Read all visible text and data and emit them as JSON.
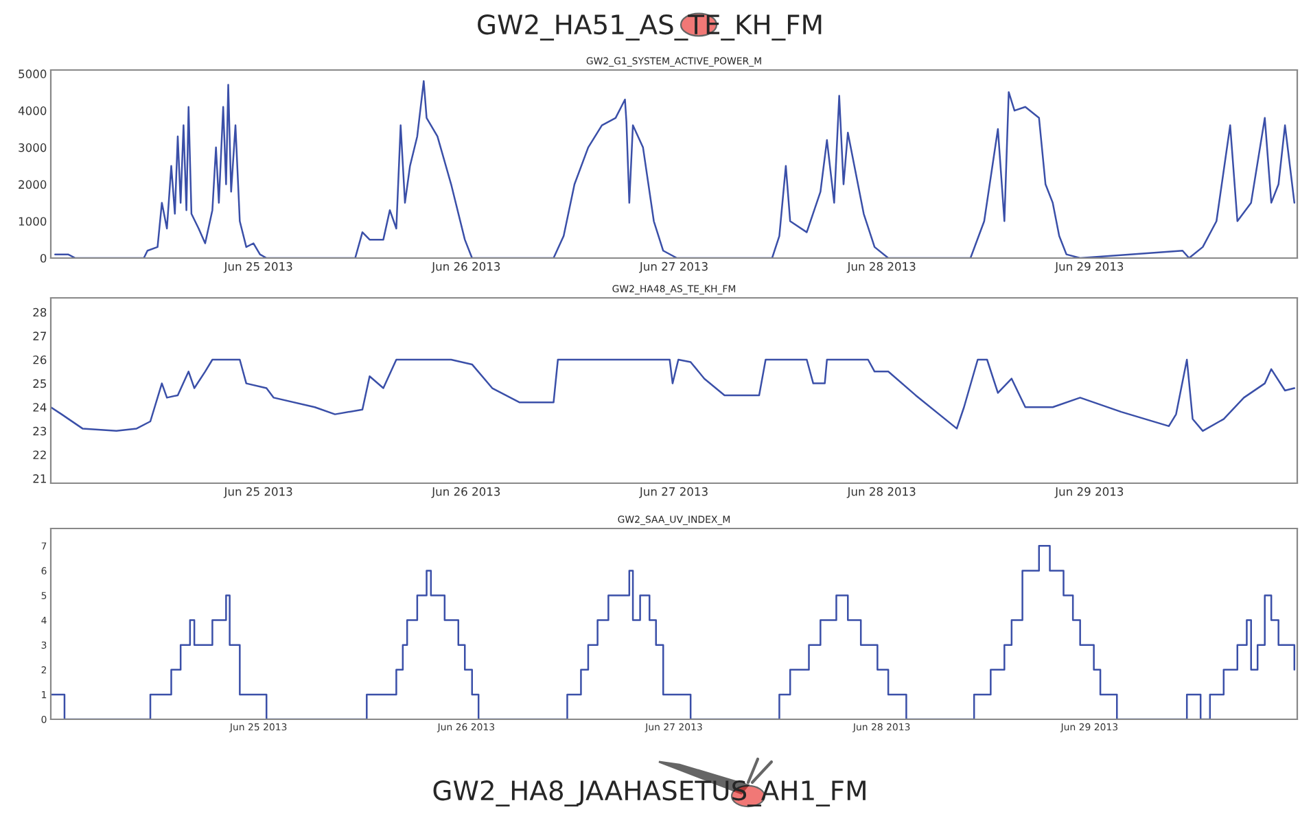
{
  "chart_data": [
    {
      "type": "line",
      "title": "GW2_G1_SYSTEM_ACTIVE_POWER_M",
      "annotations": [
        "GW2_HA51_AS_TE_KH_FM"
      ],
      "x": [
        "2013-06-24T00:30",
        "2013-06-24T02:00",
        "2013-06-24T02:50",
        "2013-06-24T10:45",
        "2013-06-24T11:10",
        "2013-06-24T12:20",
        "2013-06-24T12:50",
        "2013-06-24T13:25",
        "2013-06-24T13:55",
        "2013-06-24T14:20",
        "2013-06-24T14:40",
        "2013-06-24T15:00",
        "2013-06-24T15:20",
        "2013-06-24T15:40",
        "2013-06-24T15:55",
        "2013-06-24T16:15",
        "2013-06-24T17:05",
        "2013-06-24T17:50",
        "2013-06-24T18:40",
        "2013-06-24T19:05",
        "2013-06-24T19:25",
        "2013-06-24T19:55",
        "2013-06-24T20:15",
        "2013-06-24T20:30",
        "2013-06-24T20:50",
        "2013-06-24T21:20",
        "2013-06-24T21:50",
        "2013-06-24T22:35",
        "2013-06-24T23:25",
        "2013-06-25T00:10",
        "2013-06-25T00:55",
        "2013-06-25T11:10",
        "2013-06-25T12:00",
        "2013-06-25T12:50",
        "2013-06-25T14:25",
        "2013-06-25T15:10",
        "2013-06-25T15:55",
        "2013-06-25T16:25",
        "2013-06-25T16:55",
        "2013-06-25T17:30",
        "2013-06-25T18:20",
        "2013-06-25T19:05",
        "2013-06-25T19:25",
        "2013-06-25T20:40",
        "2013-06-25T22:15",
        "2013-06-25T23:50",
        "2013-06-26T00:40",
        "2013-06-26T10:05",
        "2013-06-26T11:15",
        "2013-06-26T12:30",
        "2013-06-26T14:05",
        "2013-06-26T15:40",
        "2013-06-26T17:15",
        "2013-06-26T18:20",
        "2013-06-26T18:30",
        "2013-06-26T18:50",
        "2013-06-26T19:15",
        "2013-06-26T20:25",
        "2013-06-26T21:40",
        "2013-06-26T22:45",
        "2013-06-27T00:20",
        "2013-06-27T11:20",
        "2013-06-27T12:10",
        "2013-06-27T12:55",
        "2013-06-27T13:25",
        "2013-06-27T15:20",
        "2013-06-27T16:55",
        "2013-06-27T17:40",
        "2013-06-27T18:30",
        "2013-06-27T19:05",
        "2013-06-27T19:35",
        "2013-06-27T20:05",
        "2013-06-27T20:50",
        "2013-06-27T21:55",
        "2013-06-27T23:10",
        "2013-06-28T00:45",
        "2013-06-28T10:15",
        "2013-06-28T11:50",
        "2013-06-28T13:25",
        "2013-06-28T14:10",
        "2013-06-28T14:40",
        "2013-06-28T15:20",
        "2013-06-28T16:35",
        "2013-06-28T18:10",
        "2013-06-28T18:55",
        "2013-06-28T19:45",
        "2013-06-28T20:30",
        "2013-06-28T21:20",
        "2013-06-28T22:55",
        "2013-06-29T10:45",
        "2013-06-29T11:30",
        "2013-06-29T13:05",
        "2013-06-29T14:40",
        "2013-06-29T16:15",
        "2013-06-29T17:05",
        "2013-06-29T18:40",
        "2013-06-29T20:15",
        "2013-06-29T21:00",
        "2013-06-29T21:50",
        "2013-06-29T22:35",
        "2013-06-29T23:40"
      ],
      "series": [
        {
          "color": "#3a4fa8",
          "values": [
            100,
            100,
            0,
            0,
            200,
            300,
            1500,
            800,
            2500,
            1200,
            3300,
            1500,
            3600,
            1300,
            4100,
            1200,
            800,
            400,
            1300,
            3000,
            1500,
            4100,
            2000,
            4700,
            1800,
            3600,
            1000,
            300,
            400,
            100,
            0,
            0,
            700,
            500,
            500,
            1300,
            800,
            3600,
            1500,
            2500,
            3300,
            4800,
            3800,
            3300,
            2000,
            500,
            0,
            0,
            600,
            2000,
            3000,
            3600,
            3800,
            4300,
            3700,
            1500,
            3600,
            3000,
            1000,
            200,
            0,
            0,
            600,
            2500,
            1000,
            700,
            1800,
            3200,
            1500,
            4400,
            2000,
            3400,
            2500,
            1200,
            300,
            0,
            0,
            1000,
            3500,
            1000,
            4500,
            4000,
            4100,
            3800,
            2000,
            1500,
            600,
            100,
            0,
            200,
            0,
            300,
            1000,
            3600,
            1000,
            1500,
            3800,
            1500,
            2000,
            3600,
            1500
          ]
        }
      ],
      "xlim": [
        "2013-06-24",
        "2013-06-30"
      ],
      "xticks": [
        {
          "value": "2013-06-25",
          "label": "Jun 25 2013"
        },
        {
          "value": "2013-06-26",
          "label": "Jun 26 2013"
        },
        {
          "value": "2013-06-27",
          "label": "Jun 27 2013"
        },
        {
          "value": "2013-06-28",
          "label": "Jun 28 2013"
        },
        {
          "value": "2013-06-29",
          "label": "Jun 29 2013"
        }
      ],
      "ylim": [
        0,
        5100
      ],
      "yticks": [
        0,
        1000,
        2000,
        3000,
        4000,
        5000
      ],
      "grid": false
    },
    {
      "type": "line",
      "title": "GW2_HA48_AS_TE_KH_FM",
      "x": [
        "2013-06-24T00:00",
        "2013-06-24T01:15",
        "2013-06-24T03:40",
        "2013-06-24T07:35",
        "2013-06-24T09:55",
        "2013-06-24T11:30",
        "2013-06-24T12:50",
        "2013-06-24T13:25",
        "2013-06-24T14:40",
        "2013-06-24T15:55",
        "2013-06-24T16:35",
        "2013-06-24T17:50",
        "2013-06-24T18:40",
        "2013-06-24T21:50",
        "2013-06-24T22:35",
        "2013-06-25T00:55",
        "2013-06-25T01:45",
        "2013-06-25T06:30",
        "2013-06-25T08:50",
        "2013-06-25T12:00",
        "2013-06-25T12:50",
        "2013-06-25T14:25",
        "2013-06-25T15:55",
        "2013-06-25T22:15",
        "2013-06-26T00:40",
        "2013-06-26T03:00",
        "2013-06-26T06:10",
        "2013-06-26T10:05",
        "2013-06-26T10:35",
        "2013-06-26T23:30",
        "2013-06-26T23:50",
        "2013-06-27T00:30",
        "2013-06-27T01:55",
        "2013-06-27T03:30",
        "2013-06-27T05:50",
        "2013-06-27T09:50",
        "2013-06-27T10:35",
        "2013-06-27T15:20",
        "2013-06-27T16:05",
        "2013-06-27T17:25",
        "2013-06-27T17:40",
        "2013-06-27T22:25",
        "2013-06-27T23:10",
        "2013-06-28T00:45",
        "2013-06-28T03:55",
        "2013-06-28T08:40",
        "2013-06-28T09:30",
        "2013-06-28T11:05",
        "2013-06-28T12:10",
        "2013-06-28T13:25",
        "2013-06-28T15:00",
        "2013-06-28T16:35",
        "2013-06-28T19:45",
        "2013-06-28T22:55",
        "2013-06-29T03:40",
        "2013-06-29T09:10",
        "2013-06-29T10:00",
        "2013-06-29T11:15",
        "2013-06-29T11:55",
        "2013-06-29T13:05",
        "2013-06-29T15:30",
        "2013-06-29T17:50",
        "2013-06-29T20:15",
        "2013-06-29T21:00",
        "2013-06-29T22:35",
        "2013-06-29T23:40"
      ],
      "series": [
        {
          "color": "#3a4fa8",
          "values": [
            24.0,
            23.7,
            23.1,
            23.0,
            23.1,
            23.4,
            25.0,
            24.4,
            24.5,
            25.5,
            24.8,
            25.5,
            26.0,
            26.0,
            25.0,
            24.8,
            24.4,
            24.0,
            23.7,
            23.9,
            25.3,
            24.8,
            26.0,
            26.0,
            25.8,
            24.8,
            24.2,
            24.2,
            26.0,
            26.0,
            25.0,
            26.0,
            25.9,
            25.2,
            24.5,
            24.5,
            26.0,
            26.0,
            25.0,
            25.0,
            26.0,
            26.0,
            25.5,
            25.5,
            24.5,
            23.1,
            24.0,
            26.0,
            26.0,
            24.6,
            25.2,
            24.0,
            24.0,
            24.4,
            23.8,
            23.2,
            23.7,
            26.0,
            23.5,
            23.0,
            23.5,
            24.4,
            25.0,
            25.6,
            24.7,
            24.8
          ]
        }
      ],
      "xlim": [
        "2013-06-24",
        "2013-06-30"
      ],
      "xticks": [
        {
          "value": "2013-06-25",
          "label": "Jun 25 2013"
        },
        {
          "value": "2013-06-26",
          "label": "Jun 26 2013"
        },
        {
          "value": "2013-06-27",
          "label": "Jun 27 2013"
        },
        {
          "value": "2013-06-28",
          "label": "Jun 28 2013"
        },
        {
          "value": "2013-06-29",
          "label": "Jun 29 2013"
        }
      ],
      "ylim": [
        20.8,
        28.6
      ],
      "yticks": [
        21,
        22,
        23,
        24,
        25,
        26,
        27,
        28
      ],
      "grid": false
    },
    {
      "type": "step",
      "title": "GW2_SAA_UV_INDEX_M",
      "annotations": [
        "GW2_HA8_JAAHASETUS_AH1_FM"
      ],
      "x": [
        "2013-06-24T00:00",
        "2013-06-24T01:35",
        "2013-06-24T11:30",
        "2013-06-24T13:55",
        "2013-06-24T15:00",
        "2013-06-24T16:05",
        "2013-06-24T16:35",
        "2013-06-24T18:40",
        "2013-06-24T20:15",
        "2013-06-24T20:40",
        "2013-06-24T21:50",
        "2013-06-25T00:55",
        "2013-06-25T12:30",
        "2013-06-25T15:55",
        "2013-06-25T16:40",
        "2013-06-25T17:10",
        "2013-06-25T18:20",
        "2013-06-25T19:25",
        "2013-06-25T19:55",
        "2013-06-25T21:30",
        "2013-06-25T23:05",
        "2013-06-25T23:50",
        "2013-06-26T00:40",
        "2013-06-26T01:25",
        "2013-06-26T11:40",
        "2013-06-26T13:15",
        "2013-06-26T14:05",
        "2013-06-26T15:10",
        "2013-06-26T16:25",
        "2013-06-26T18:50",
        "2013-06-26T19:15",
        "2013-06-26T20:05",
        "2013-06-26T21:10",
        "2013-06-26T21:55",
        "2013-06-26T22:45",
        "2013-06-27T01:55",
        "2013-06-27T12:10",
        "2013-06-27T13:25",
        "2013-06-27T15:35",
        "2013-06-27T16:55",
        "2013-06-27T18:45",
        "2013-06-27T20:05",
        "2013-06-27T21:35",
        "2013-06-27T23:30",
        "2013-06-28T00:45",
        "2013-06-28T02:50",
        "2013-06-28T10:40",
        "2013-06-28T12:35",
        "2013-06-28T14:10",
        "2013-06-28T15:00",
        "2013-06-28T16:15",
        "2013-06-28T18:10",
        "2013-06-28T19:25",
        "2013-06-28T21:00",
        "2013-06-28T22:05",
        "2013-06-28T22:55",
        "2013-06-29T00:30",
        "2013-06-29T01:15",
        "2013-06-29T03:10",
        "2013-06-29T11:15",
        "2013-06-29T12:50",
        "2013-06-29T13:55",
        "2013-06-29T15:30",
        "2013-06-29T17:05",
        "2013-06-29T18:10",
        "2013-06-29T18:40",
        "2013-06-29T19:25",
        "2013-06-29T20:15",
        "2013-06-29T21:00",
        "2013-06-29T21:50",
        "2013-06-29T23:40"
      ],
      "series": [
        {
          "color": "#3a4fa8",
          "values": [
            1,
            0,
            1,
            2,
            3,
            4,
            3,
            4,
            5,
            3,
            1,
            0,
            1,
            2,
            3,
            4,
            5,
            6,
            5,
            4,
            3,
            2,
            1,
            0,
            1,
            2,
            3,
            4,
            5,
            6,
            4,
            5,
            4,
            3,
            1,
            0,
            1,
            2,
            3,
            4,
            5,
            4,
            3,
            2,
            1,
            0,
            1,
            2,
            3,
            4,
            6,
            7,
            6,
            5,
            4,
            3,
            2,
            1,
            0,
            1,
            0,
            1,
            2,
            3,
            4,
            2,
            3,
            5,
            4,
            3,
            2
          ]
        }
      ],
      "xlim": [
        "2013-06-24",
        "2013-06-30"
      ],
      "xticks": [
        {
          "value": "2013-06-25",
          "label": "Jun 25 2013"
        },
        {
          "value": "2013-06-26",
          "label": "Jun 26 2013"
        },
        {
          "value": "2013-06-27",
          "label": "Jun 27 2013"
        },
        {
          "value": "2013-06-28",
          "label": "Jun 28 2013"
        },
        {
          "value": "2013-06-29",
          "label": "Jun 29 2013"
        }
      ],
      "ylim": [
        0,
        7.7
      ],
      "yticks": [
        0,
        1,
        2,
        3,
        4,
        5,
        6,
        7
      ],
      "grid": false
    }
  ]
}
